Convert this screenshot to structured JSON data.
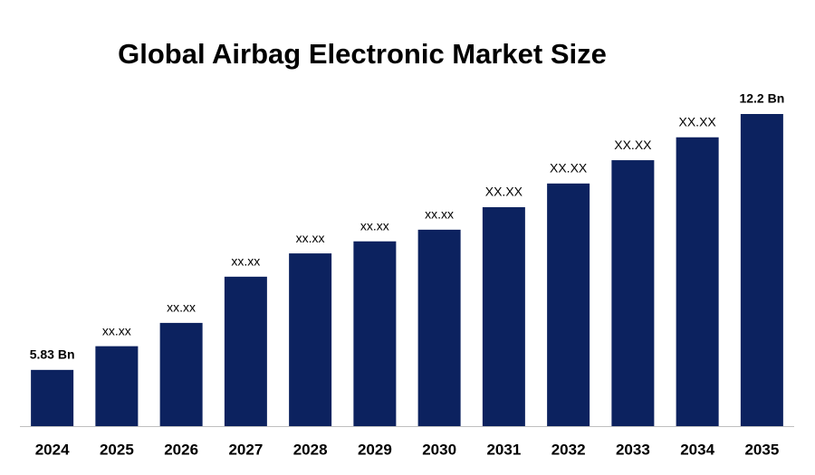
{
  "chart_data": {
    "type": "bar",
    "title": "Global Airbag Electronic Market Size",
    "categories": [
      "2024",
      "2025",
      "2026",
      "2027",
      "2028",
      "2029",
      "2030",
      "2031",
      "2032",
      "2033",
      "2034",
      "2035"
    ],
    "values": [
      5.83,
      6.42,
      7.0,
      8.15,
      8.73,
      9.03,
      9.32,
      9.88,
      10.47,
      11.05,
      11.62,
      12.2
    ],
    "value_labels": [
      "5.83 Bn",
      "xx.xx",
      "xx.xx",
      "xx.xx",
      "xx.xx",
      "xx.xx",
      "xx.xx",
      "XX.XX",
      "XX.XX",
      "XX.XX",
      "XX.XX",
      "12.2 Bn"
    ],
    "color": "#0c225f",
    "ylim": [
      4.43,
      12.2
    ]
  }
}
